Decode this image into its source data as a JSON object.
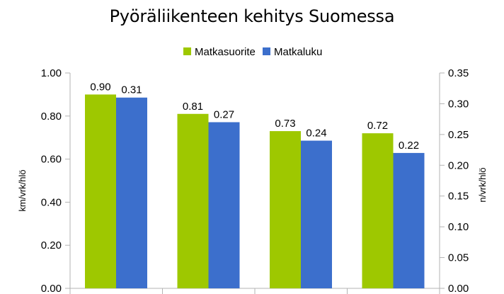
{
  "chart_data": {
    "type": "bar",
    "title": "Pyöräliikenteen kehitys Suomessa",
    "categories": [
      "",
      "",
      "",
      ""
    ],
    "series": [
      {
        "name": "Matkasuorite",
        "values": [
          0.9,
          0.81,
          0.73,
          0.72
        ],
        "labels": [
          "0.90",
          "0.81",
          "0.73",
          "0.72"
        ],
        "axis": "left",
        "color": "#9ec800"
      },
      {
        "name": "Matkaluku",
        "values": [
          0.31,
          0.27,
          0.24,
          0.22
        ],
        "labels": [
          "0.31",
          "0.27",
          "0.24",
          "0.22"
        ],
        "axis": "right",
        "color": "#3c6fcc"
      }
    ],
    "ylabel_left": "km/vrk/hlö",
    "ylabel_right": "n/vrk/hlö",
    "ylim_left": [
      0,
      1.0
    ],
    "ylim_right": [
      0,
      0.35
    ],
    "yticks_left": [
      "0.00",
      "0.20",
      "0.40",
      "0.60",
      "0.80",
      "1.00"
    ],
    "yticks_right": [
      "0.00",
      "0.05",
      "0.10",
      "0.15",
      "0.20",
      "0.25",
      "0.30",
      "0.35"
    ],
    "grid": false,
    "legend_position": "top-center"
  }
}
